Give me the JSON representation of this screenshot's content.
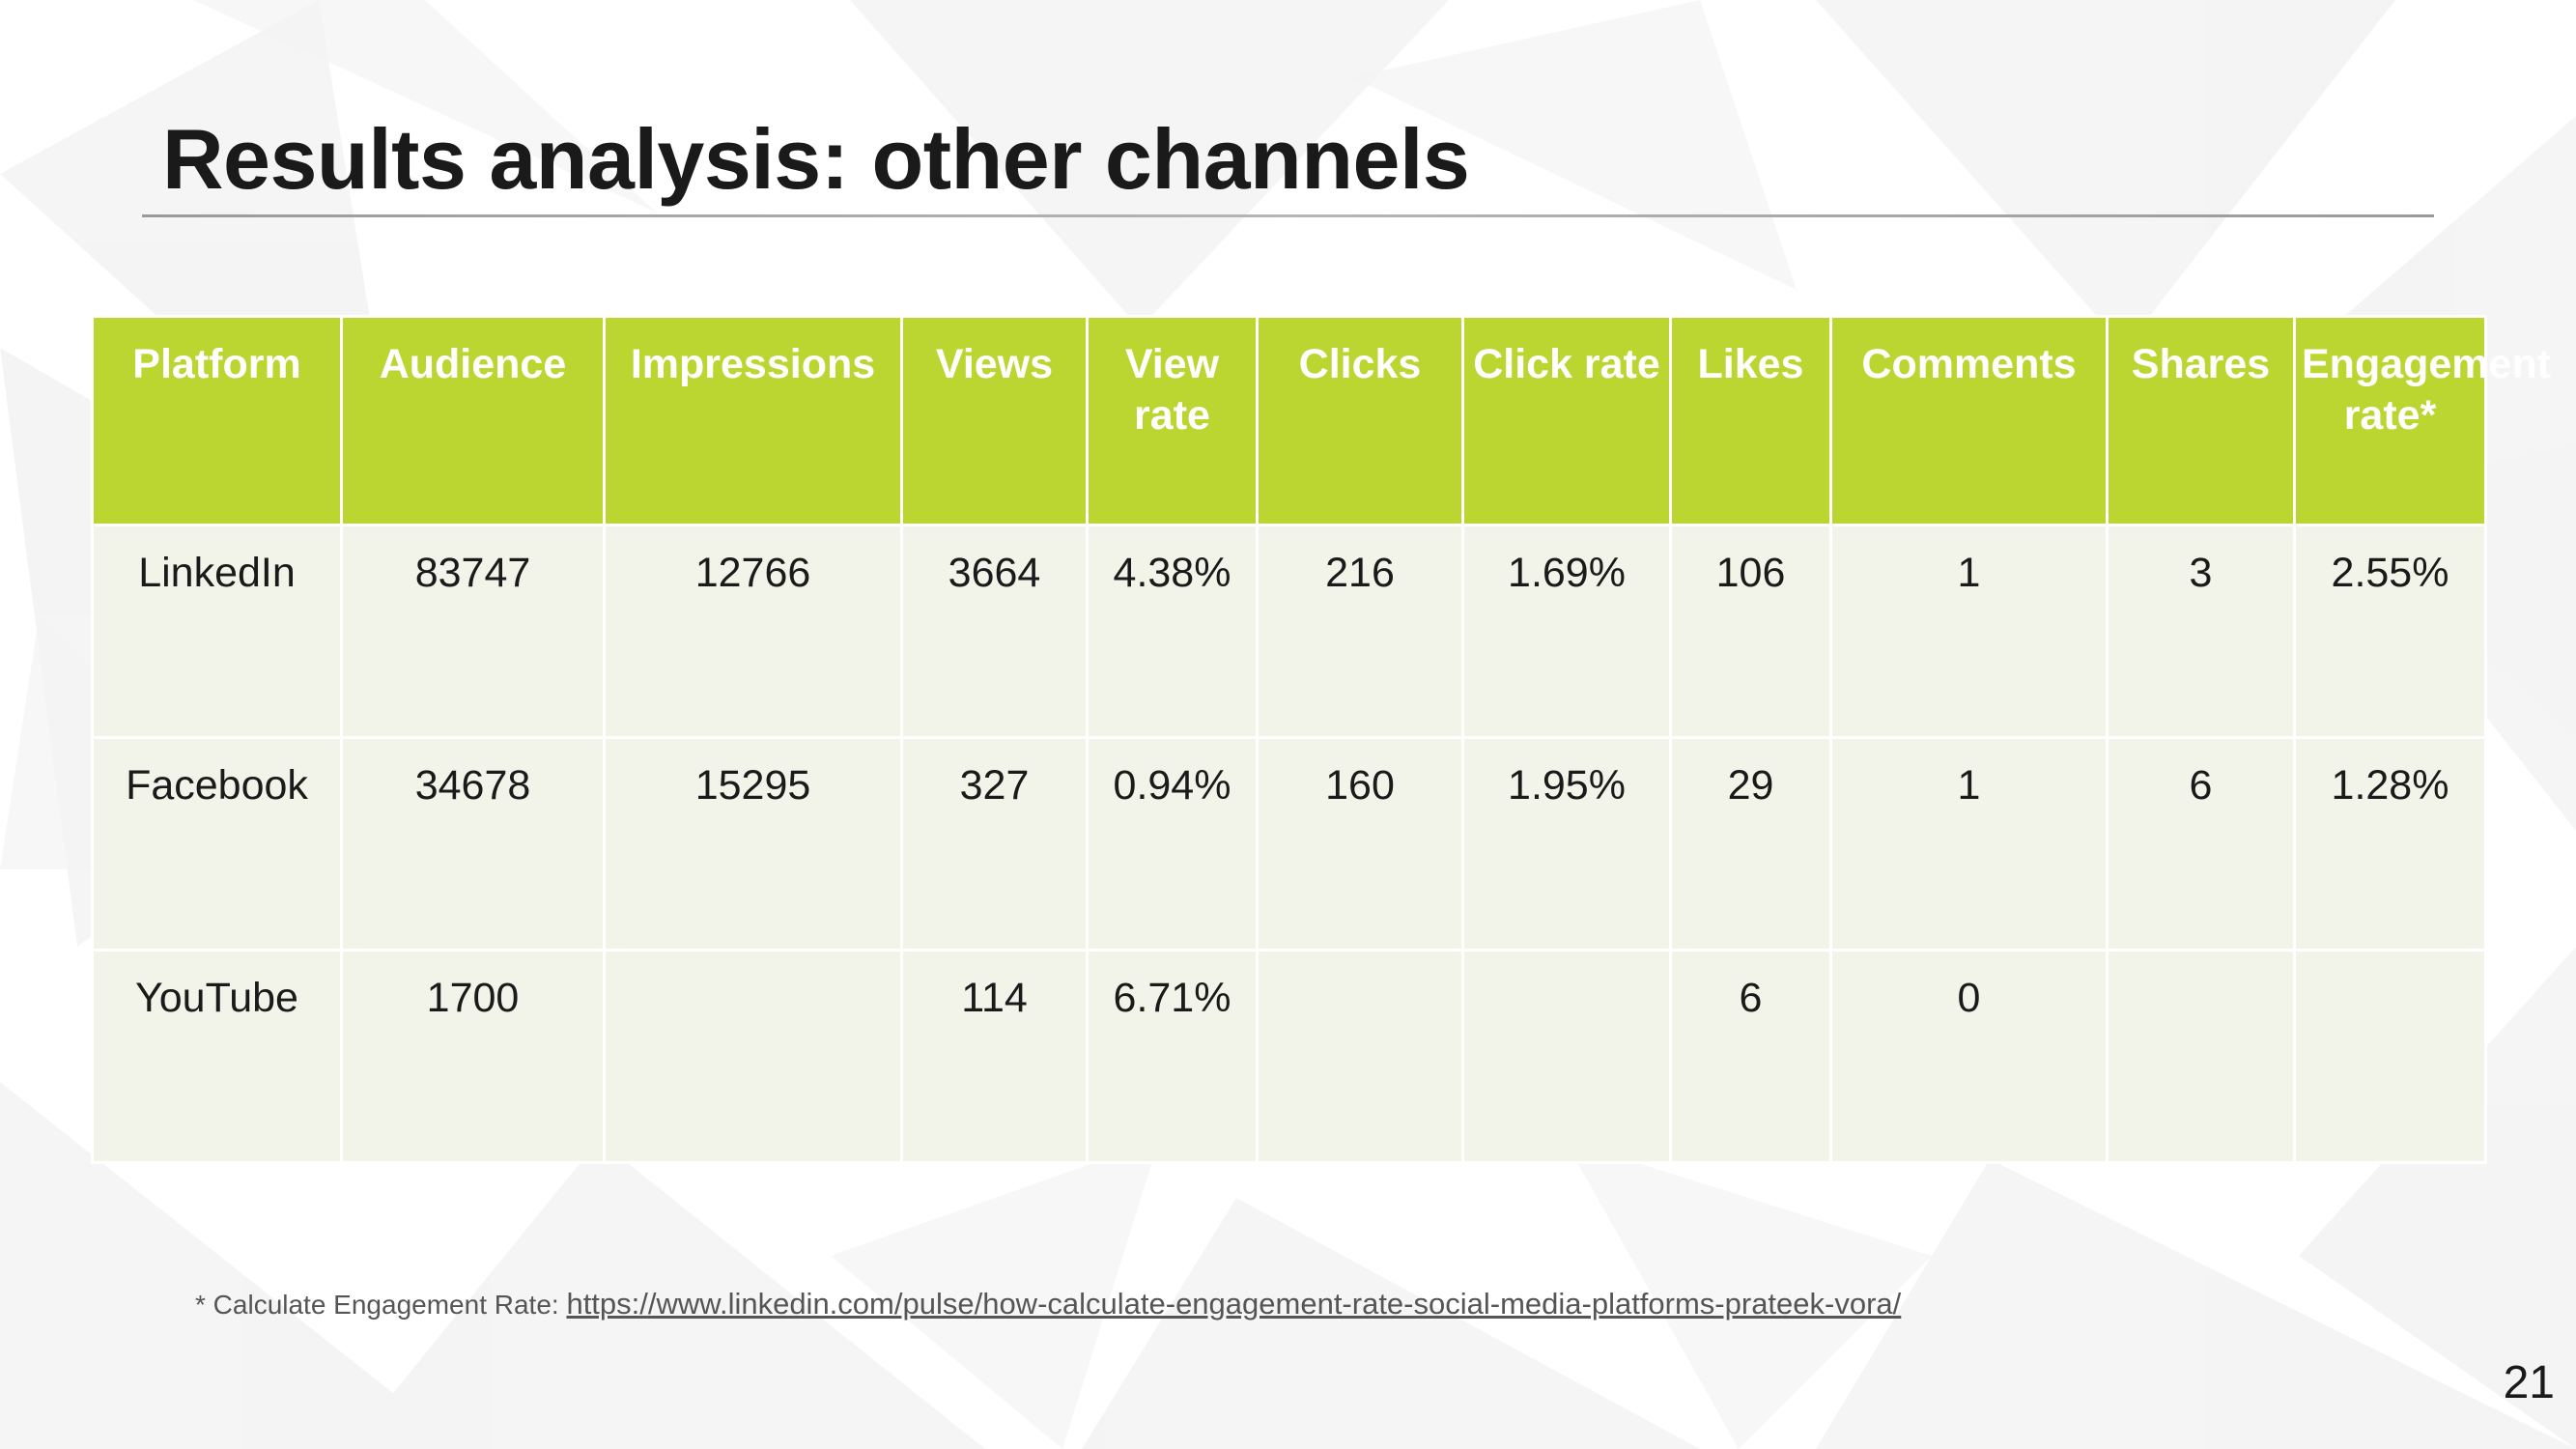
{
  "slide": {
    "title": "Results analysis: other channels",
    "page_number": "21"
  },
  "table": {
    "headers": [
      "Platform",
      "Audience",
      "Impressions",
      "Views",
      "View rate",
      "Clicks",
      "Click rate",
      "Likes",
      "Comments",
      "Shares",
      "Engagement rate*"
    ],
    "rows": [
      [
        "LinkedIn",
        "83747",
        "12766",
        "3664",
        "4.38%",
        "216",
        "1.69%",
        "106",
        "1",
        "3",
        "2.55%"
      ],
      [
        "Facebook",
        "34678",
        "15295",
        "327",
        "0.94%",
        "160",
        "1.95%",
        "29",
        "1",
        "6",
        "1.28%"
      ],
      [
        "YouTube",
        "1700",
        "",
        "114",
        "6.71%",
        "",
        "",
        "6",
        "0",
        "",
        ""
      ]
    ]
  },
  "footnote": {
    "prefix": "* Calculate Engagement Rate: ",
    "link_text": "https://www.linkedin.com/pulse/how-calculate-engagement-rate-social-media-platforms-prateek-vora/"
  },
  "colors": {
    "header_fill": "#bcd631",
    "body_fill": "#f2f4e9",
    "header_text": "#ffffff",
    "body_text": "#1a1a1a"
  }
}
